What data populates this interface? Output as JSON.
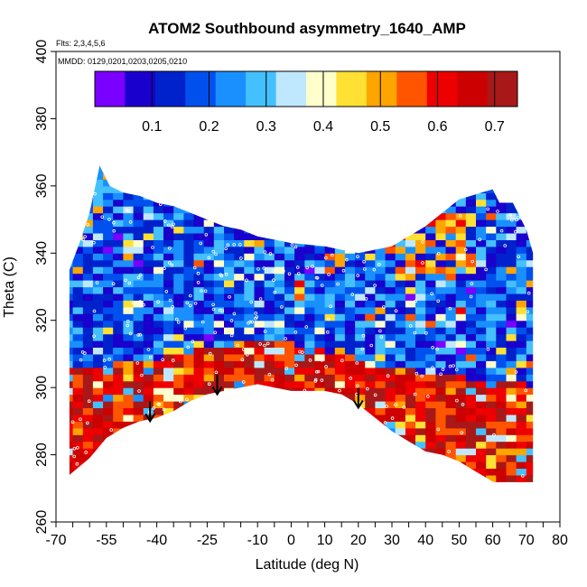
{
  "chart_data": {
    "type": "heatmap",
    "title": "ATOM2 Southbound asymmetry_1640_AMP",
    "annotations": [
      "Flts: 2,3,4,5,6",
      "MMDD: 0129,0201,0203,0205,0210"
    ],
    "xlabel": "Latitude (deg N)",
    "ylabel": "Theta (C)",
    "xlim": [
      -70,
      80
    ],
    "ylim": [
      260,
      400
    ],
    "x_tick_labels": [
      "-70",
      "-55",
      "-40",
      "-25",
      "-10",
      "0",
      "10",
      "20",
      "30",
      "40",
      "50",
      "60",
      "70",
      "80"
    ],
    "y_tick_labels": [
      "260",
      "280",
      "300",
      "320",
      "340",
      "360",
      "380",
      "400"
    ],
    "colorbar": {
      "range": [
        0,
        0.74
      ],
      "tick_labels": [
        "0.1",
        "0.2",
        "0.3",
        "0.4",
        "0.5",
        "0.6",
        "0.7"
      ],
      "colors": [
        "#7a00ff",
        "#1a00cc",
        "#0022cc",
        "#0050ee",
        "#1a90ff",
        "#44c0ff",
        "#bfe8ff",
        "#ffffcc",
        "#ffe033",
        "#ffa500",
        "#ff5500",
        "#ee0000",
        "#cc0000",
        "#a81818"
      ]
    },
    "field_envelope": {
      "top": [
        [
          -66,
          335
        ],
        [
          -63,
          343
        ],
        [
          -60,
          352
        ],
        [
          -57,
          366
        ],
        [
          -54,
          360
        ],
        [
          -50,
          358
        ],
        [
          -45,
          357
        ],
        [
          -40,
          355
        ],
        [
          -35,
          354
        ],
        [
          -30,
          352
        ],
        [
          -25,
          350
        ],
        [
          -20,
          348
        ],
        [
          -15,
          347
        ],
        [
          -10,
          345
        ],
        [
          0,
          343
        ],
        [
          10,
          342
        ],
        [
          20,
          340
        ],
        [
          30,
          342
        ],
        [
          40,
          348
        ],
        [
          50,
          356
        ],
        [
          60,
          359
        ],
        [
          62,
          355
        ],
        [
          66,
          355
        ],
        [
          70,
          347
        ],
        [
          72,
          340
        ]
      ],
      "bottom": [
        [
          -66,
          274
        ],
        [
          -60,
          279
        ],
        [
          -55,
          285
        ],
        [
          -50,
          288
        ],
        [
          -45,
          290
        ],
        [
          -40,
          291
        ],
        [
          -35,
          293
        ],
        [
          -30,
          296
        ],
        [
          -25,
          298
        ],
        [
          -20,
          299
        ],
        [
          -15,
          300
        ],
        [
          -10,
          301
        ],
        [
          -5,
          300
        ],
        [
          0,
          299
        ],
        [
          10,
          299
        ],
        [
          15,
          298
        ],
        [
          20,
          295
        ],
        [
          25,
          291
        ],
        [
          30,
          287
        ],
        [
          35,
          284
        ],
        [
          40,
          281
        ],
        [
          45,
          280
        ],
        [
          50,
          278
        ],
        [
          55,
          275
        ],
        [
          60,
          272
        ],
        [
          65,
          270
        ],
        [
          70,
          270
        ],
        [
          72,
          270
        ]
      ]
    },
    "high_value_layer": {
      "value_approx": 0.65,
      "top": [
        [
          -66,
          305
        ],
        [
          -60,
          305
        ],
        [
          -55,
          306
        ],
        [
          -50,
          307
        ],
        [
          -40,
          308
        ],
        [
          -30,
          310
        ],
        [
          -20,
          312
        ],
        [
          -10,
          313
        ],
        [
          0,
          312
        ],
        [
          10,
          310
        ],
        [
          20,
          307
        ],
        [
          30,
          305
        ],
        [
          40,
          303
        ],
        [
          50,
          302
        ],
        [
          60,
          301
        ],
        [
          70,
          300
        ],
        [
          72,
          300
        ]
      ]
    },
    "arrows_latitude": [
      -42,
      -22,
      20
    ],
    "arrows_theta_tip": [
      290,
      298,
      294
    ]
  }
}
